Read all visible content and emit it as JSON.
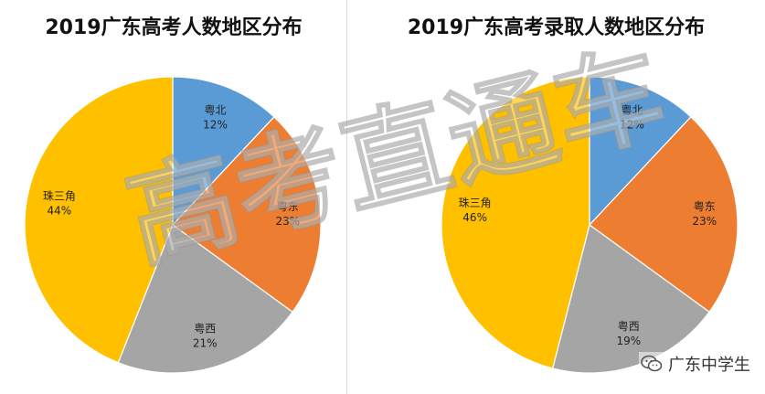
{
  "chart_data": [
    {
      "type": "pie",
      "title": "2019广东高考人数地区分布",
      "slices": [
        {
          "label": "粤北",
          "value": 12,
          "value_text": "12%",
          "color": "#5B9BD5"
        },
        {
          "label": "粤东",
          "value": 23,
          "value_text": "23%",
          "color": "#ED7D31"
        },
        {
          "label": "粤西",
          "value": 21,
          "value_text": "21%",
          "color": "#A5A5A5"
        },
        {
          "label": "珠三角",
          "value": 44,
          "value_text": "44%",
          "color": "#FFC000"
        }
      ]
    },
    {
      "type": "pie",
      "title": "2019广东高考录取人数地区分布",
      "slices": [
        {
          "label": "粤北",
          "value": 12,
          "value_text": "12%",
          "color": "#5B9BD5"
        },
        {
          "label": "粤东",
          "value": 23,
          "value_text": "23%",
          "color": "#ED7D31"
        },
        {
          "label": "粤西",
          "value": 19,
          "value_text": "19%",
          "color": "#A5A5A5"
        },
        {
          "label": "珠三角",
          "value": 46,
          "value_text": "46%",
          "color": "#FFC000"
        }
      ]
    }
  ],
  "watermark": "高考直通车",
  "source": {
    "name": "广东中学生",
    "icon": "wechat-icon"
  }
}
